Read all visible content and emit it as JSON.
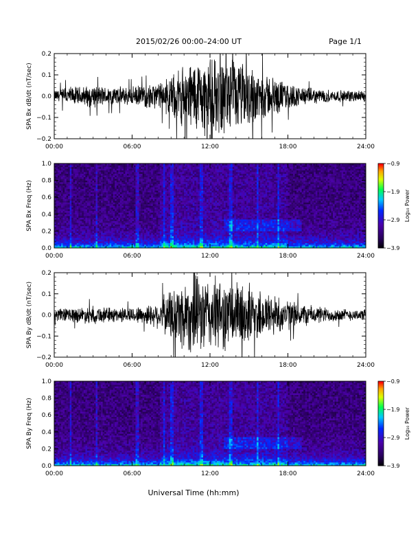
{
  "header": {
    "title": "2015/02/26  00:00–24:00 UT",
    "page": "Page 1/1"
  },
  "xaxis_label": "Universal Time (hh:mm)",
  "chart_data": [
    {
      "type": "line",
      "ylabel": "SPA Bx dB/dt (nT/sec)",
      "xlim": [
        "00:00",
        "24:00"
      ],
      "ylim": [
        -0.2,
        0.2
      ],
      "x_ticks": [
        "00:00",
        "06:00",
        "12:00",
        "18:00",
        "24:00"
      ],
      "y_ticks": [
        "−0.2",
        "−0.1",
        "0.0",
        "0.1",
        "0.2"
      ],
      "y_tick_values": [
        -0.2,
        -0.1,
        0.0,
        0.1,
        0.2
      ],
      "envelope": {
        "hours": [
          0,
          1,
          2,
          3,
          4,
          5,
          6,
          7,
          8,
          9,
          10,
          11,
          12,
          13,
          14,
          15,
          16,
          17,
          18,
          19,
          20,
          21,
          22,
          23,
          24
        ],
        "amplitude": [
          0.03,
          0.05,
          0.05,
          0.06,
          0.05,
          0.05,
          0.05,
          0.06,
          0.07,
          0.1,
          0.17,
          0.2,
          0.2,
          0.2,
          0.19,
          0.17,
          0.13,
          0.1,
          0.07,
          0.05,
          0.04,
          0.035,
          0.03,
          0.03,
          0.03
        ]
      },
      "line_color": "#000000"
    },
    {
      "type": "heatmap",
      "ylabel": "SPA Bx Freq (Hz)",
      "xlim": [
        "00:00",
        "24:00"
      ],
      "ylim": [
        0.0,
        1.0
      ],
      "x_ticks": [
        "00:00",
        "06:00",
        "12:00",
        "18:00",
        "24:00"
      ],
      "y_ticks": [
        "0.0",
        "0.2",
        "0.4",
        "0.6",
        "0.8",
        "1.0"
      ],
      "y_tick_values": [
        0.0,
        0.2,
        0.4,
        0.6,
        0.8,
        1.0
      ],
      "colorbar": {
        "label": "Log₁₀ Power",
        "ticks": [
          "−0.9",
          "−1.9",
          "−2.9",
          "−3.9"
        ],
        "tick_values": [
          -0.9,
          -1.9,
          -2.9,
          -3.9
        ],
        "range": [
          -3.9,
          -0.9
        ]
      }
    },
    {
      "type": "line",
      "ylabel": "SPA By dB/dt (nT/sec)",
      "xlim": [
        "00:00",
        "24:00"
      ],
      "ylim": [
        -0.2,
        0.2
      ],
      "x_ticks": [
        "00:00",
        "06:00",
        "12:00",
        "18:00",
        "24:00"
      ],
      "y_ticks": [
        "−0.2",
        "−0.1",
        "0.0",
        "0.1",
        "0.2"
      ],
      "y_tick_values": [
        -0.2,
        -0.1,
        0.0,
        0.1,
        0.2
      ],
      "envelope": {
        "hours": [
          0,
          1,
          2,
          3,
          4,
          5,
          6,
          7,
          8,
          9,
          10,
          11,
          12,
          13,
          14,
          15,
          16,
          17,
          18,
          19,
          20,
          21,
          22,
          23,
          24
        ],
        "amplitude": [
          0.03,
          0.04,
          0.04,
          0.05,
          0.04,
          0.04,
          0.04,
          0.05,
          0.07,
          0.14,
          0.2,
          0.2,
          0.2,
          0.19,
          0.18,
          0.16,
          0.13,
          0.11,
          0.08,
          0.06,
          0.05,
          0.04,
          0.035,
          0.03,
          0.03
        ]
      },
      "line_color": "#000000"
    },
    {
      "type": "heatmap",
      "ylabel": "SPA By Freq (Hz)",
      "xlim": [
        "00:00",
        "24:00"
      ],
      "ylim": [
        0.0,
        1.0
      ],
      "x_ticks": [
        "00:00",
        "06:00",
        "12:00",
        "18:00",
        "24:00"
      ],
      "y_ticks": [
        "0.0",
        "0.2",
        "0.4",
        "0.6",
        "0.8",
        "1.0"
      ],
      "y_tick_values": [
        0.0,
        0.2,
        0.4,
        0.6,
        0.8,
        1.0
      ],
      "colorbar": {
        "label": "Log₁₀ Power",
        "ticks": [
          "−0.9",
          "−1.9",
          "−2.9",
          "−3.9"
        ],
        "tick_values": [
          -0.9,
          -1.9,
          -2.9,
          -3.9
        ],
        "range": [
          -3.9,
          -0.9
        ]
      }
    }
  ]
}
